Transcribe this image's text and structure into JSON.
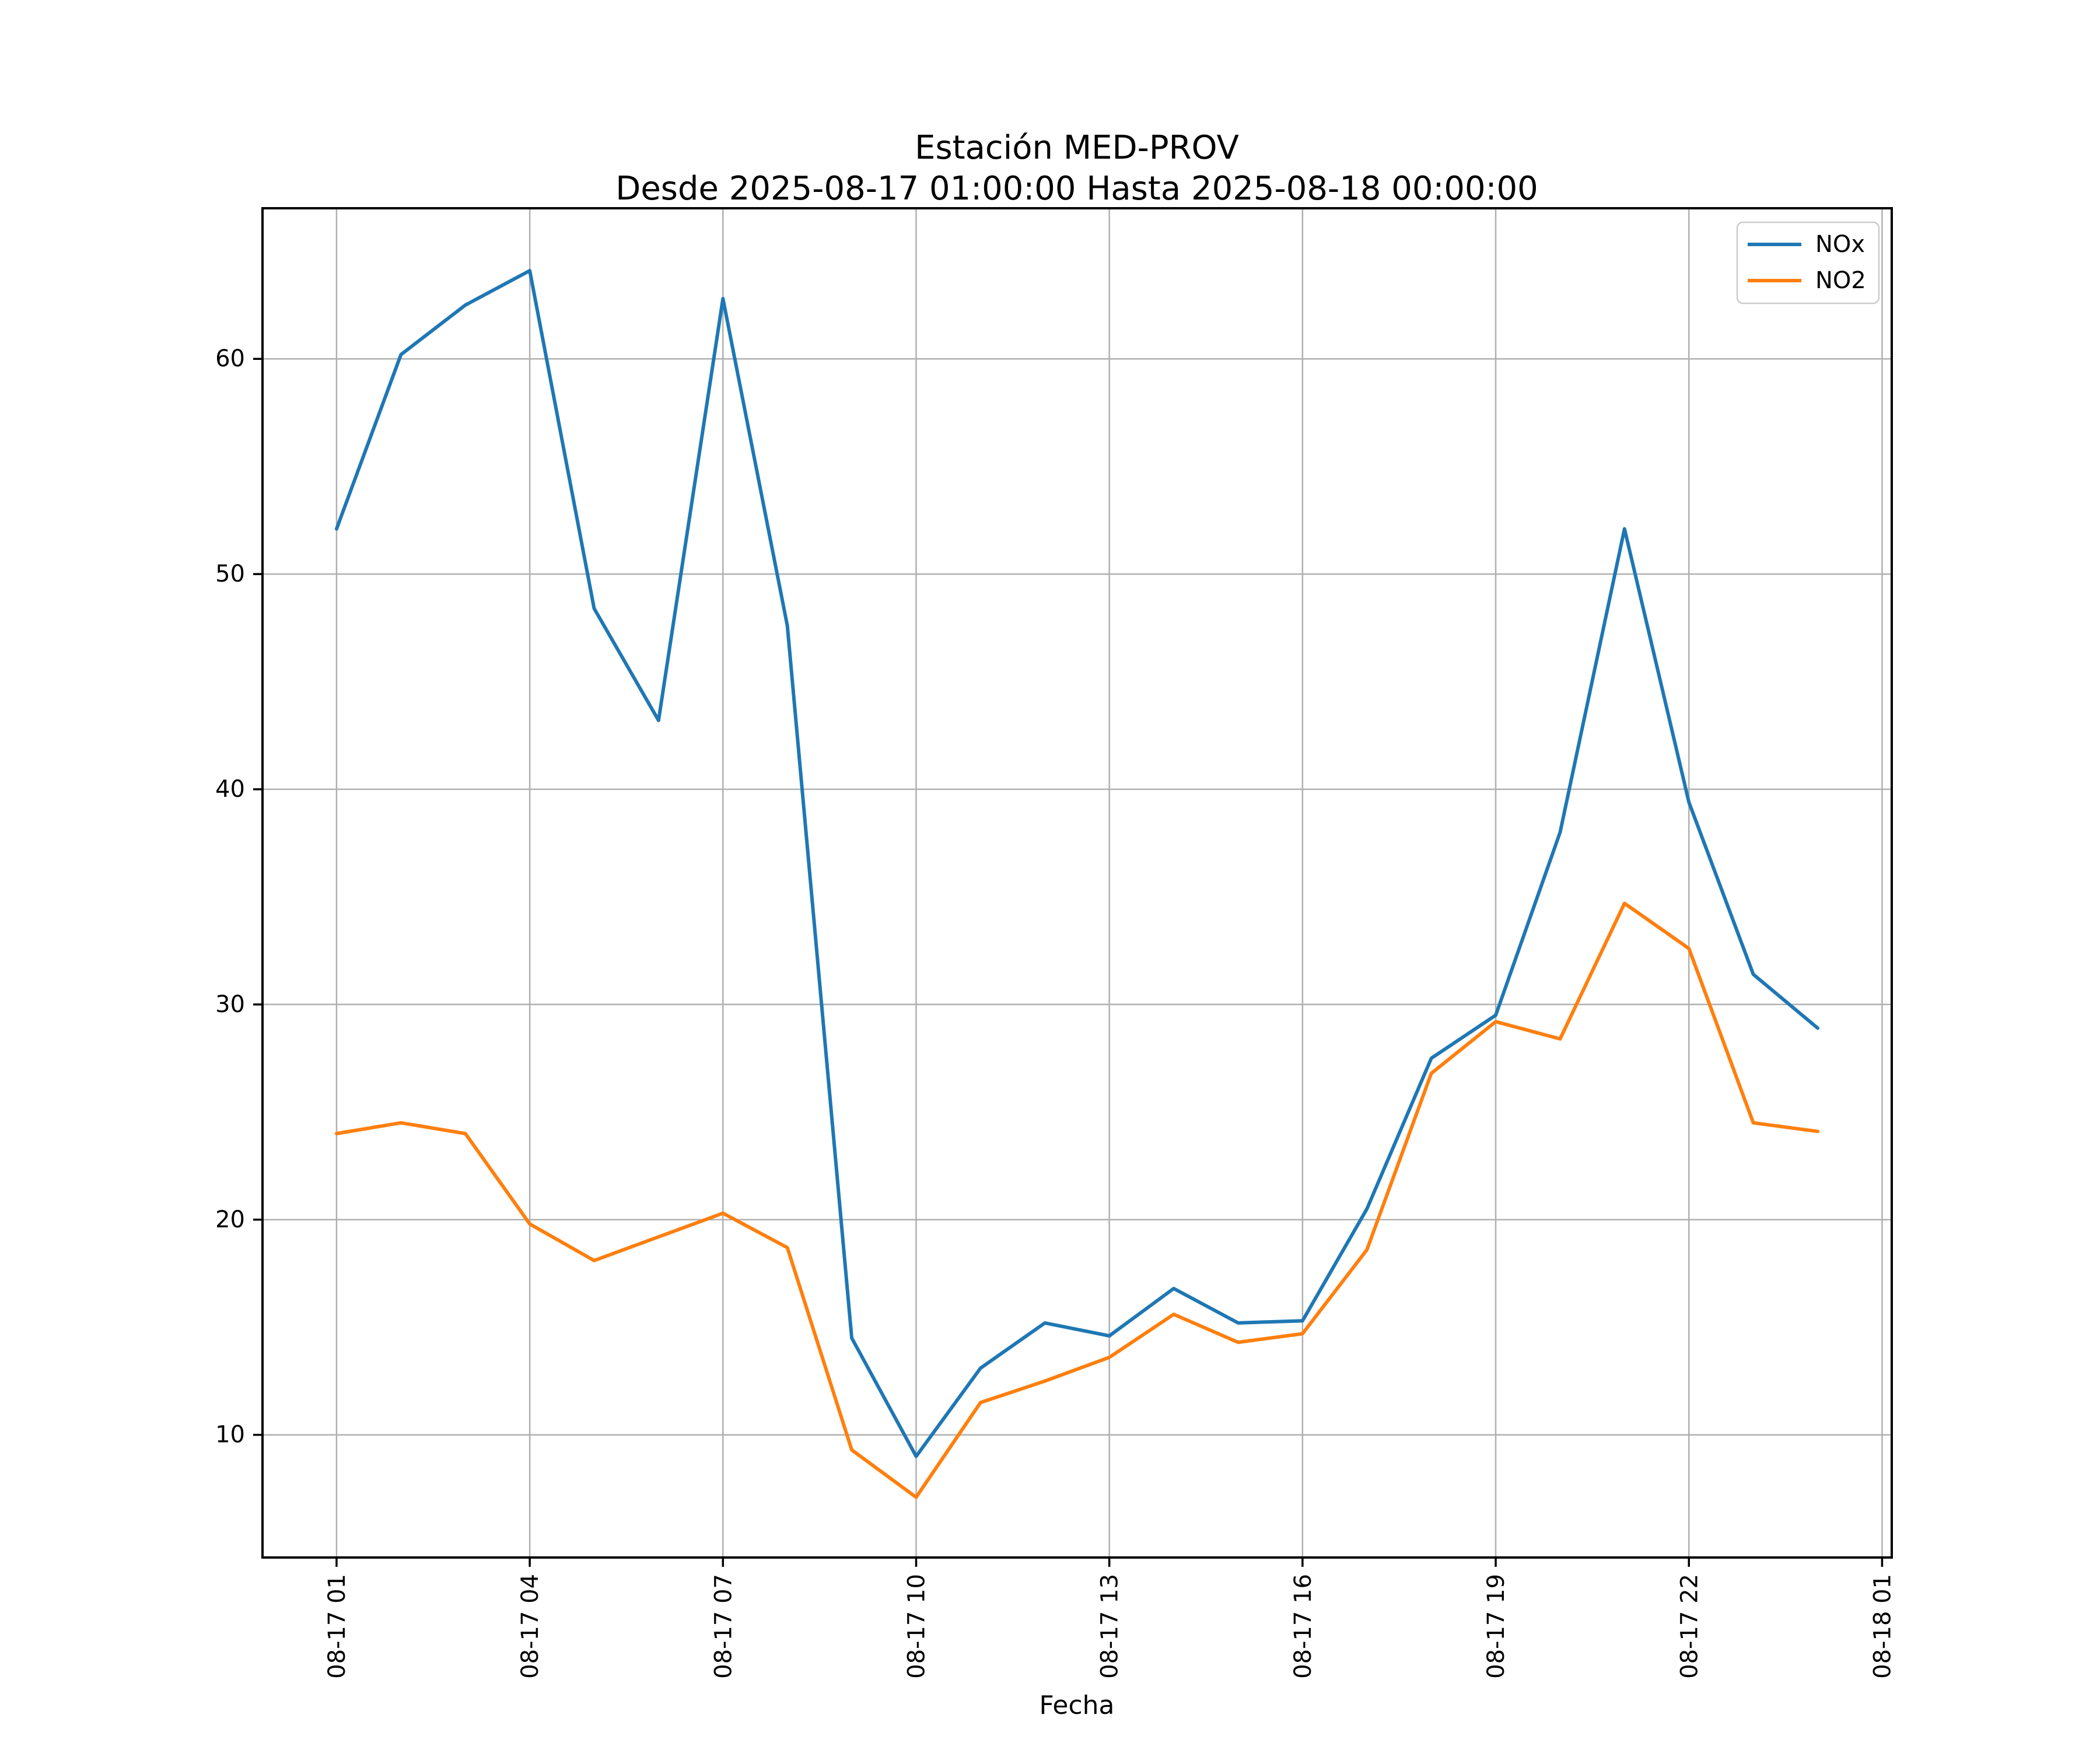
{
  "chart_data": {
    "type": "line",
    "title": "Estación MED-PROV",
    "subtitle": "Desde 2025-08-17 01:00:00 Hasta 2025-08-18 00:00:00",
    "xlabel": "Fecha",
    "ylabel": "",
    "grid": true,
    "legend_position": "upper right",
    "categories": [
      "08-17 01:00",
      "08-17 02:00",
      "08-17 03:00",
      "08-17 04:00",
      "08-17 05:00",
      "08-17 06:00",
      "08-17 07:00",
      "08-17 08:00",
      "08-17 09:00",
      "08-17 10:00",
      "08-17 11:00",
      "08-17 12:00",
      "08-17 13:00",
      "08-17 14:00",
      "08-17 15:00",
      "08-17 16:00",
      "08-17 17:00",
      "08-17 18:00",
      "08-17 19:00",
      "08-17 20:00",
      "08-17 21:00",
      "08-17 22:00",
      "08-17 23:00",
      "08-18 00:00"
    ],
    "series": [
      {
        "name": "NOx",
        "color": "#1f77b4",
        "values": [
          52.1,
          60.2,
          62.5,
          64.1,
          48.4,
          43.2,
          62.8,
          47.6,
          14.5,
          9.0,
          13.1,
          15.2,
          14.6,
          16.8,
          15.2,
          15.3,
          20.5,
          27.5,
          29.5,
          38.0,
          52.1,
          39.4,
          31.4,
          28.9
        ]
      },
      {
        "name": "NO2",
        "color": "#ff7f0e",
        "values": [
          24.0,
          24.5,
          24.0,
          19.8,
          18.1,
          19.2,
          20.3,
          18.7,
          9.3,
          7.1,
          11.5,
          12.5,
          13.6,
          15.6,
          14.3,
          14.7,
          18.6,
          26.8,
          29.2,
          28.4,
          34.7,
          32.6,
          24.5,
          24.1
        ]
      }
    ],
    "x_tick_labels": [
      "08-17 01",
      "08-17 04",
      "08-17 07",
      "08-17 10",
      "08-17 13",
      "08-17 16",
      "08-17 19",
      "08-17 22",
      "08-18 01"
    ],
    "x_tick_hours": [
      0,
      3,
      6,
      9,
      12,
      15,
      18,
      21,
      24
    ],
    "y_ticks": [
      10,
      20,
      30,
      40,
      50,
      60
    ],
    "xlim_hours": [
      -1.15,
      24.15
    ],
    "ylim": [
      4.3,
      67.0
    ],
    "colors": {
      "nox": "#1f77b4",
      "no2": "#ff7f0e",
      "grid": "#b0b0b0",
      "spine": "#000000",
      "legend_border": "#cccccc"
    }
  }
}
